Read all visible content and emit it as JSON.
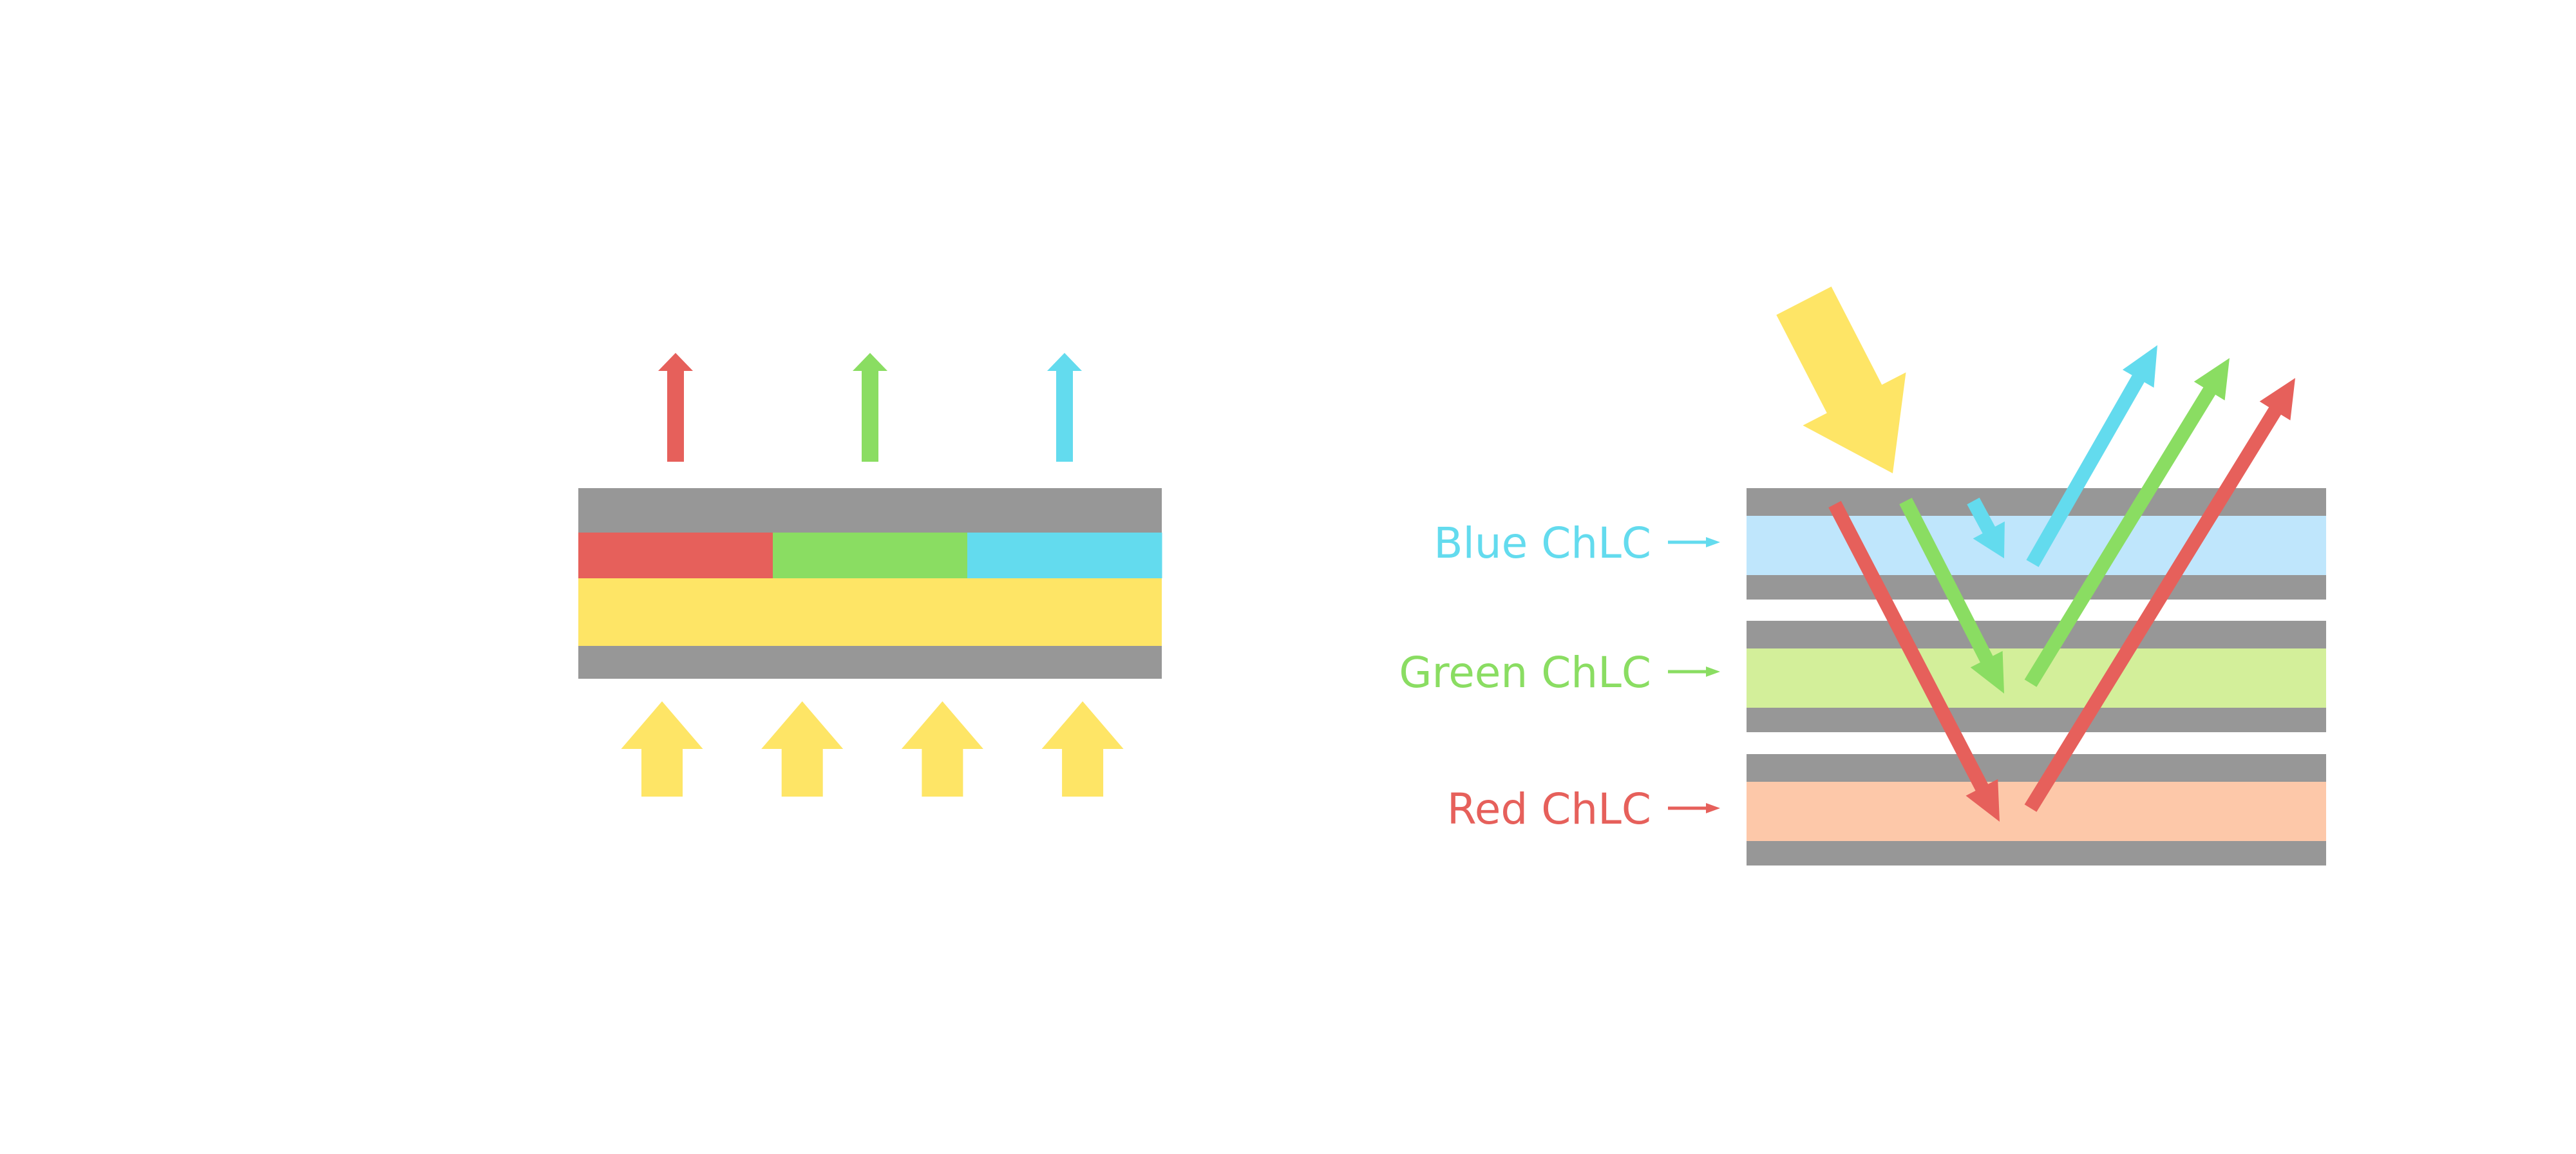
{
  "colors": {
    "red": "#E6605B",
    "green": "#8ADD62",
    "cyan": "#63DBEE",
    "yellow": "#FEE566",
    "gray": "#979797",
    "blue_layer": "#BFE6FC",
    "green_layer": "#D3EF9A",
    "red_layer": "#FDC8A9"
  },
  "left_diagram": {
    "emitted_light": [
      "red",
      "green",
      "cyan"
    ],
    "color_filter": [
      "red",
      "green",
      "cyan"
    ],
    "backlight_arrow_count": 4
  },
  "right_diagram": {
    "layers": [
      {
        "label": "Blue ChLC",
        "color": "cyan",
        "fill": "blue_layer"
      },
      {
        "label": "Green ChLC",
        "color": "green",
        "fill": "green_layer"
      },
      {
        "label": "Red ChLC",
        "color": "red",
        "fill": "red_layer"
      }
    ]
  }
}
